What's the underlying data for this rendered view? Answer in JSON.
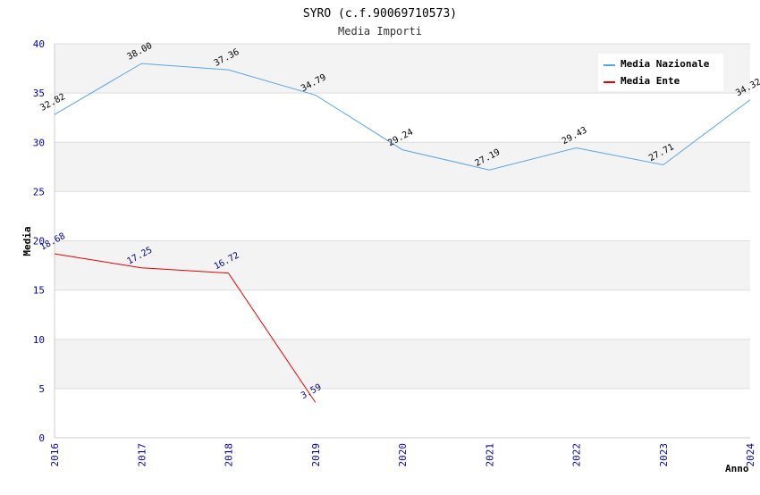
{
  "chart_data": {
    "type": "line",
    "title": "SYRO (c.f.90069710573)",
    "subtitle": "Media Importi",
    "xlabel": "Anno",
    "ylabel": "Media",
    "ylim": [
      0,
      40
    ],
    "yticks": [
      0,
      5,
      10,
      15,
      20,
      25,
      30,
      35,
      40
    ],
    "x": [
      "2016",
      "2017",
      "2018",
      "2019",
      "2020",
      "2021",
      "2022",
      "2023",
      "2024"
    ],
    "grid": true,
    "legend_position": "top-right",
    "series": [
      {
        "name": "Media Nazionale",
        "color": "#5aa5e6",
        "values": [
          32.82,
          38.0,
          37.36,
          34.79,
          29.24,
          27.19,
          29.43,
          27.71,
          34.32
        ],
        "labels": [
          "32.82",
          "38.00",
          "37.36",
          "34.79",
          "29.24",
          "27.19",
          "29.43",
          "27.71",
          "34.32"
        ]
      },
      {
        "name": "Media Ente",
        "color": "#e60000",
        "values": [
          18.68,
          17.25,
          16.72,
          3.59,
          null,
          null,
          null,
          null,
          null
        ],
        "labels": [
          "18.68",
          "17.25",
          "16.72",
          "3.59",
          null,
          null,
          null,
          null,
          null
        ]
      }
    ]
  }
}
